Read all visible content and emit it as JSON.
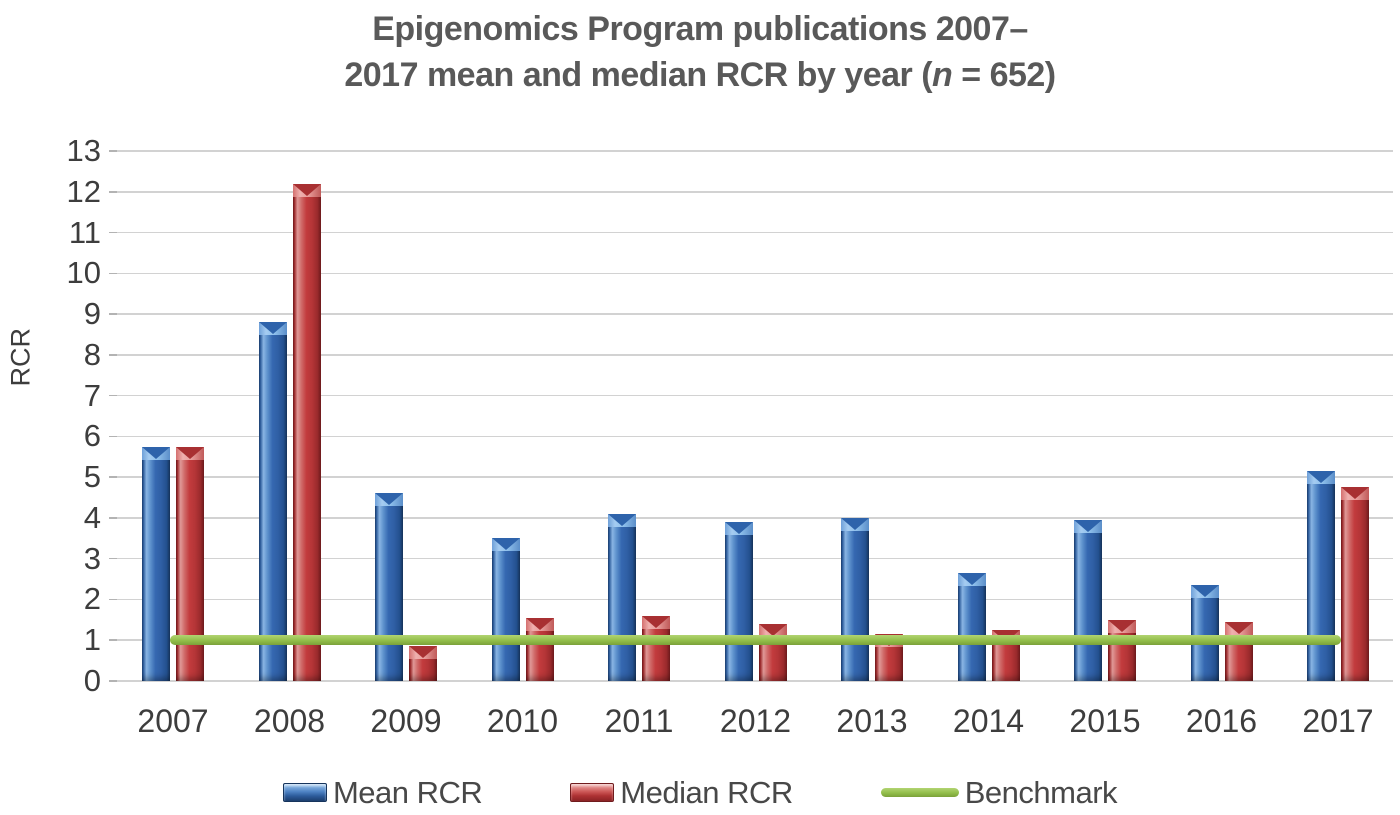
{
  "chart_data": {
    "type": "bar",
    "title": "Epigenomics Program publications 2007–2017 mean and median RCR by year (n = 652)",
    "title_line1": "Epigenomics Program publications 2007–",
    "title_line2_prefix": "2017 mean and median RCR by year (",
    "title_line2_italic": "n",
    "title_line2_suffix": " = 652)",
    "xlabel": "",
    "ylabel": "RCR",
    "ylim": [
      0,
      13
    ],
    "yticks": [
      "0",
      "1",
      "2",
      "3",
      "4",
      "5",
      "6",
      "7",
      "8",
      "9",
      "10",
      "11",
      "12",
      "13"
    ],
    "grid": true,
    "legend_position": "bottom",
    "categories": [
      "2007",
      "2008",
      "2009",
      "2010",
      "2011",
      "2012",
      "2013",
      "2014",
      "2015",
      "2016",
      "2017"
    ],
    "series": [
      {
        "name": "Mean RCR",
        "color": "#3568b1",
        "values": [
          5.75,
          8.8,
          4.6,
          3.5,
          4.1,
          3.9,
          4.0,
          2.65,
          3.95,
          2.35,
          5.15
        ]
      },
      {
        "name": "Median RCR",
        "color": "#c23b3d",
        "values": [
          5.75,
          12.2,
          0.85,
          1.55,
          1.6,
          1.4,
          1.15,
          1.25,
          1.5,
          1.45,
          4.75
        ]
      }
    ],
    "benchmark": {
      "name": "Benchmark",
      "value": 1.0,
      "color": "#92be4a"
    }
  },
  "legend": {
    "mean_label": "Mean RCR",
    "median_label": "Median RCR",
    "benchmark_label": "Benchmark"
  }
}
